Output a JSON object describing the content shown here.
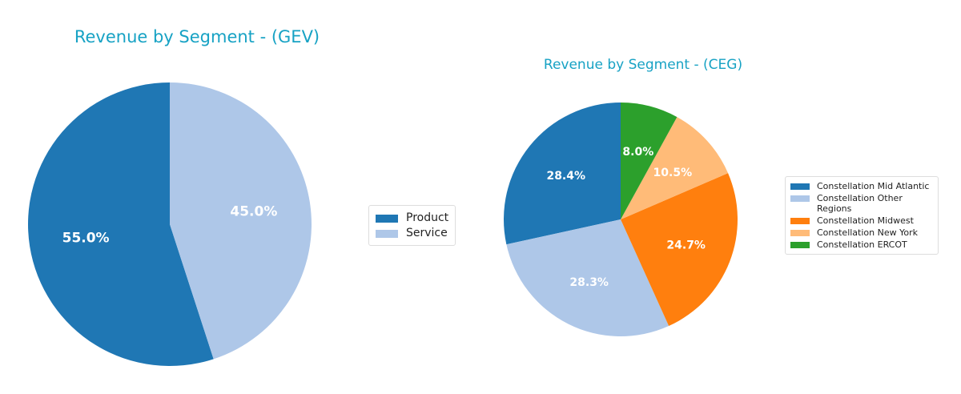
{
  "chart_data": [
    {
      "type": "pie",
      "title": "Revenue by Segment - (GEV)",
      "labels": [
        "Product",
        "Service"
      ],
      "values": [
        55.0,
        45.0
      ],
      "value_labels": [
        "55.0%",
        "45.0%"
      ],
      "colors": [
        "#1f77b4",
        "#aec7e8"
      ],
      "start_angle": 90,
      "direction": "counterclockwise",
      "legend_position": "right"
    },
    {
      "type": "pie",
      "title": "Revenue by Segment - (CEG)",
      "labels": [
        "Constellation Mid Atlantic",
        "Constellation Other Regions",
        "Constellation Midwest",
        "Constellation New York",
        "Constellation ERCOT"
      ],
      "values": [
        28.4,
        28.3,
        24.7,
        10.5,
        8.0
      ],
      "value_labels": [
        "28.4%",
        "28.3%",
        "24.7%",
        "10.5%",
        "8.0%"
      ],
      "colors": [
        "#1f77b4",
        "#aec7e8",
        "#ff7f0e",
        "#ffbb78",
        "#2ca02c"
      ],
      "start_angle": 90,
      "direction": "counterclockwise",
      "legend_position": "right"
    }
  ]
}
